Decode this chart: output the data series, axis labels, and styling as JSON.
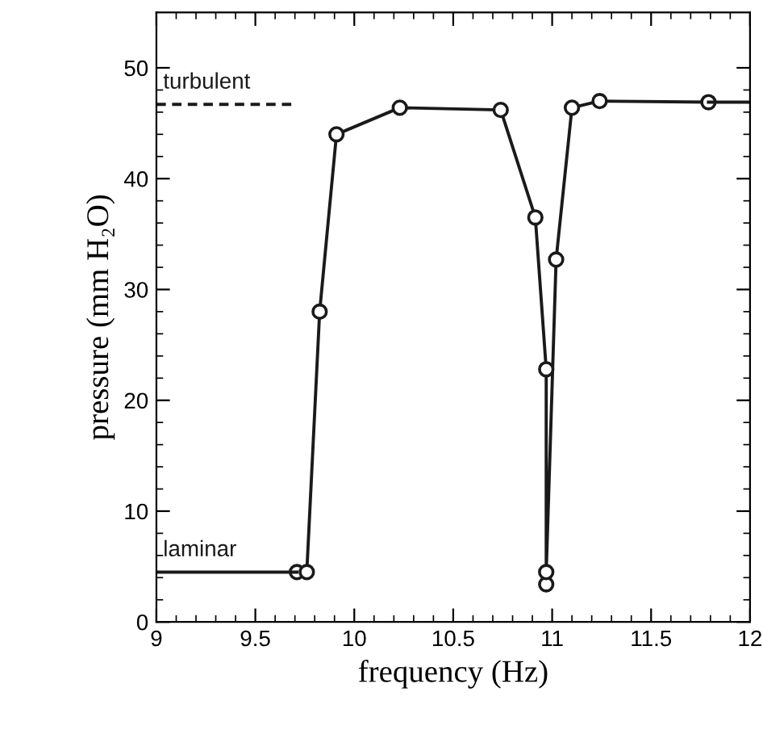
{
  "chart_data": {
    "type": "line",
    "xlabel": "frequency (Hz)",
    "ylabel": "pressure (mm H₂O)",
    "xlim": [
      9,
      12
    ],
    "ylim": [
      0,
      55
    ],
    "xticks": [
      9,
      9.5,
      10,
      10.5,
      11,
      11.5,
      12
    ],
    "yticks": [
      0,
      10,
      20,
      30,
      40,
      50
    ],
    "grid": false,
    "legend": false,
    "series": [
      {
        "color": "#1a1a1a",
        "marker": "circle",
        "line_style": "solid",
        "x": [
          9.71,
          9.76,
          9.825,
          9.91,
          10.23,
          10.74,
          10.915,
          10.97,
          10.97,
          10.97,
          11.02,
          11.1,
          11.24,
          11.79
        ],
        "values": [
          4.5,
          4.5,
          28,
          44,
          46.4,
          46.2,
          36.5,
          22.8,
          3.4,
          4.5,
          32.7,
          46.4,
          47.0,
          46.9
        ]
      },
      {
        "color": "#1a1a1a",
        "marker": "none",
        "line_style": "solid",
        "x": [
          11.79,
          12
        ],
        "values": [
          46.9,
          46.9
        ]
      },
      {
        "name": "laminar",
        "color": "#1a1a1a",
        "marker": "none",
        "line_style": "solid",
        "x": [
          9,
          9.71
        ],
        "values": [
          4.5,
          4.5
        ]
      },
      {
        "name": "turbulent",
        "color": "#1a1a1a",
        "marker": "none",
        "line_style": "dashed",
        "x": [
          9,
          9.7
        ],
        "values": [
          46.7,
          46.7
        ]
      }
    ]
  }
}
